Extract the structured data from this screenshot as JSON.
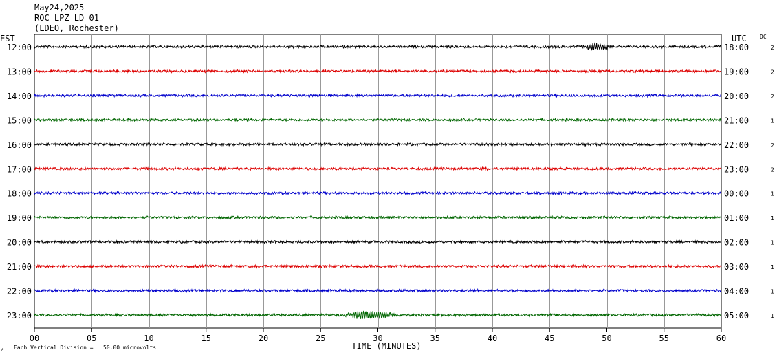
{
  "header": {
    "date": "May24,2025",
    "station": "ROC LPZ LD 01",
    "network": "(LDEO, Rochester)"
  },
  "labels": {
    "left_timezone": "EST",
    "right_timezone": "UTC",
    "dc_header": "DC",
    "footer_note": "Each Vertical Division =   50.00 microvolts"
  },
  "chart_data": {
    "type": "line",
    "xlabel": "TIME (MINUTES)",
    "xlim": [
      0,
      60
    ],
    "x_ticks": [
      "00",
      "05",
      "10",
      "15",
      "20",
      "25",
      "30",
      "35",
      "40",
      "45",
      "50",
      "55",
      "60"
    ],
    "trace_colors": [
      "#000000",
      "#dd0000",
      "#0000cc",
      "#006600"
    ],
    "rows": [
      {
        "est": "12:00",
        "utc": "18:00",
        "dc": "2",
        "events": [
          {
            "start": 47.5,
            "end": 53.0,
            "amp": 5
          }
        ]
      },
      {
        "est": "13:00",
        "utc": "19:00",
        "dc": "2",
        "events": []
      },
      {
        "est": "14:00",
        "utc": "20:00",
        "dc": "2",
        "events": []
      },
      {
        "est": "15:00",
        "utc": "21:00",
        "dc": "1",
        "events": []
      },
      {
        "est": "16:00",
        "utc": "22:00",
        "dc": "2",
        "events": []
      },
      {
        "est": "17:00",
        "utc": "23:00",
        "dc": "2",
        "events": [
          {
            "start": 39.0,
            "end": 40.0,
            "amp": 2
          }
        ]
      },
      {
        "est": "18:00",
        "utc": "00:00",
        "dc": "1",
        "events": []
      },
      {
        "est": "19:00",
        "utc": "01:00",
        "dc": "1",
        "events": []
      },
      {
        "est": "20:00",
        "utc": "02:00",
        "dc": "1",
        "events": []
      },
      {
        "est": "21:00",
        "utc": "03:00",
        "dc": "1",
        "events": []
      },
      {
        "est": "22:00",
        "utc": "04:00",
        "dc": "1",
        "events": []
      },
      {
        "est": "23:00",
        "utc": "05:00",
        "dc": "1",
        "events": [
          {
            "start": 26.8,
            "end": 35.0,
            "amp": 6
          }
        ]
      }
    ]
  }
}
